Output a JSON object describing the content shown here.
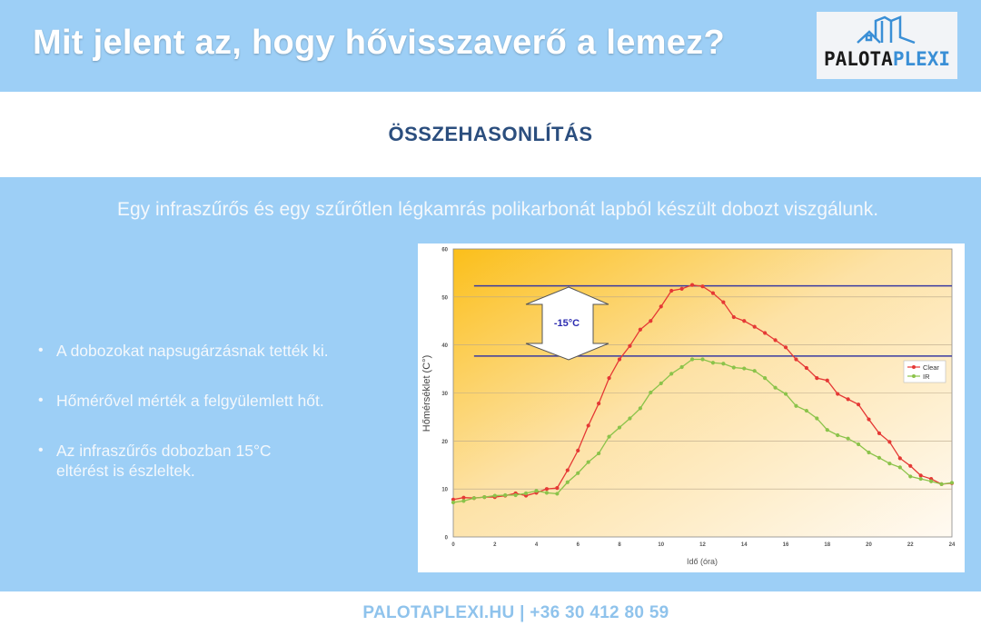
{
  "header": {
    "title": "Mit jelent az, hogy hővisszaverő a lemez?",
    "logo_text_a": "PALOTA",
    "logo_text_b": "PLEXI"
  },
  "section": {
    "subtitle": "ÖSSZEHASONLÍTÁS",
    "intro": "Egy infraszűrős és egy szűrőtlen légkamrás polikarbonát lapból készült dobozt viszgálunk."
  },
  "bullets": [
    "A dobozokat napsugárzásnak tették ki.",
    "Hőmérővel mérték a felgyülemlett hőt.",
    "Az infraszűrős dobozban 15°C",
    "eltérést is észleltek."
  ],
  "footer": {
    "text": "PALOTAPLEXI.HU | +36 30 412 80 59"
  },
  "chart_data": {
    "type": "line",
    "xlabel": "Idő (óra)",
    "ylabel": "Hőmérséklet (C°)",
    "xlim": [
      0,
      24
    ],
    "ylim": [
      0,
      60
    ],
    "xticks": [
      "0",
      "2",
      "4",
      "6",
      "8",
      "10",
      "12",
      "14",
      "16",
      "18",
      "20",
      "22",
      "24"
    ],
    "yticks": [
      "0",
      "10",
      "20",
      "30",
      "40",
      "50",
      "60"
    ],
    "grid": true,
    "legend": "right",
    "x": [
      0,
      0.5,
      1,
      1.5,
      2,
      2.5,
      3,
      3.5,
      4,
      4.5,
      5,
      5.5,
      6,
      6.5,
      7,
      7.5,
      8,
      8.5,
      9,
      9.5,
      10,
      10.5,
      11,
      11.5,
      12,
      12.5,
      13,
      13.5,
      14,
      14.5,
      15,
      15.5,
      16,
      16.5,
      17,
      17.5,
      18,
      18.5,
      19,
      19.5,
      20,
      20.5,
      21,
      21.5,
      22,
      22.5,
      23,
      23.5,
      24
    ],
    "series": [
      {
        "name": "Clear",
        "color": "#e53935",
        "values": [
          7.8,
          8.2,
          8.1,
          8.3,
          8.3,
          8.6,
          9.1,
          8.6,
          9.2,
          10.0,
          10.2,
          13.9,
          18,
          23.2,
          27.8,
          33.1,
          37,
          39.8,
          43.2,
          45,
          48,
          51.3,
          51.7,
          52.5,
          52.2,
          50.8,
          48.9,
          45.8,
          45,
          43.8,
          42.5,
          41,
          39.5,
          37,
          35.2,
          33.1,
          32.6,
          29.8,
          28.7,
          27.6,
          24.5,
          21.6,
          19.8,
          16.4,
          14.8,
          12.8,
          12.1,
          11,
          11.2
        ]
      },
      {
        "name": "IR",
        "color": "#8bc34a",
        "values": [
          7.2,
          7.5,
          8.1,
          8.3,
          8.6,
          8.7,
          8.7,
          9.1,
          9.6,
          9.2,
          9.0,
          11.4,
          13.3,
          15.6,
          17.4,
          20.9,
          22.8,
          24.7,
          26.8,
          30.1,
          32,
          34,
          35.4,
          37,
          37,
          36.3,
          36.1,
          35.3,
          35.1,
          34.6,
          33.1,
          31.1,
          29.8,
          27.3,
          26.3,
          24.7,
          22.3,
          21.2,
          20.5,
          19.3,
          17.6,
          16.5,
          15.3,
          14.5,
          12.6,
          12.1,
          11.6,
          11,
          11.3
        ]
      }
    ],
    "reference_lines": [
      52.3,
      37.7
    ],
    "reference_color": "#3a3aa0",
    "annotation": "-15°C"
  }
}
